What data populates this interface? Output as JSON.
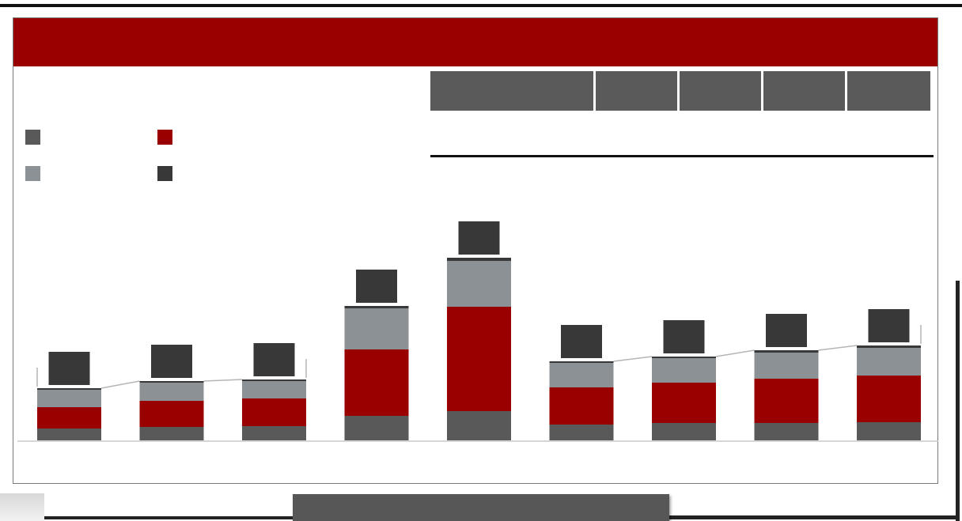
{
  "banner": {
    "title": ""
  },
  "legend": [
    {
      "label": "",
      "color": "#595959"
    },
    {
      "label": "",
      "color": "#990000"
    },
    {
      "label": "",
      "color": "#8c9196"
    },
    {
      "label": "",
      "color": "#383838"
    }
  ],
  "table": {
    "headers": [
      "",
      "",
      "",
      "",
      ""
    ]
  },
  "footer": {
    "text": ""
  },
  "chart_data": {
    "type": "bar",
    "stacked": true,
    "categories": [
      "",
      "",
      "",
      "",
      "",
      "",
      "",
      "",
      ""
    ],
    "series": [
      {
        "name": "",
        "color": "#595959",
        "values": [
          15,
          17,
          18,
          31,
          37,
          20,
          22,
          22,
          23
        ]
      },
      {
        "name": "",
        "color": "#990000",
        "values": [
          27,
          33,
          35,
          84,
          132,
          47,
          51,
          56,
          59
        ]
      },
      {
        "name": "",
        "color": "#8c9196",
        "values": [
          22,
          23,
          22,
          52,
          58,
          31,
          31,
          33,
          35
        ]
      },
      {
        "name": "",
        "color": "#383838",
        "values": [
          2,
          2,
          2,
          3,
          4,
          2,
          2,
          3,
          3
        ]
      }
    ],
    "total_labels": [
      "",
      "",
      "",
      "",
      "",
      "",
      "",
      "",
      ""
    ],
    "ylim": [
      0,
      260
    ],
    "grid": false
  }
}
